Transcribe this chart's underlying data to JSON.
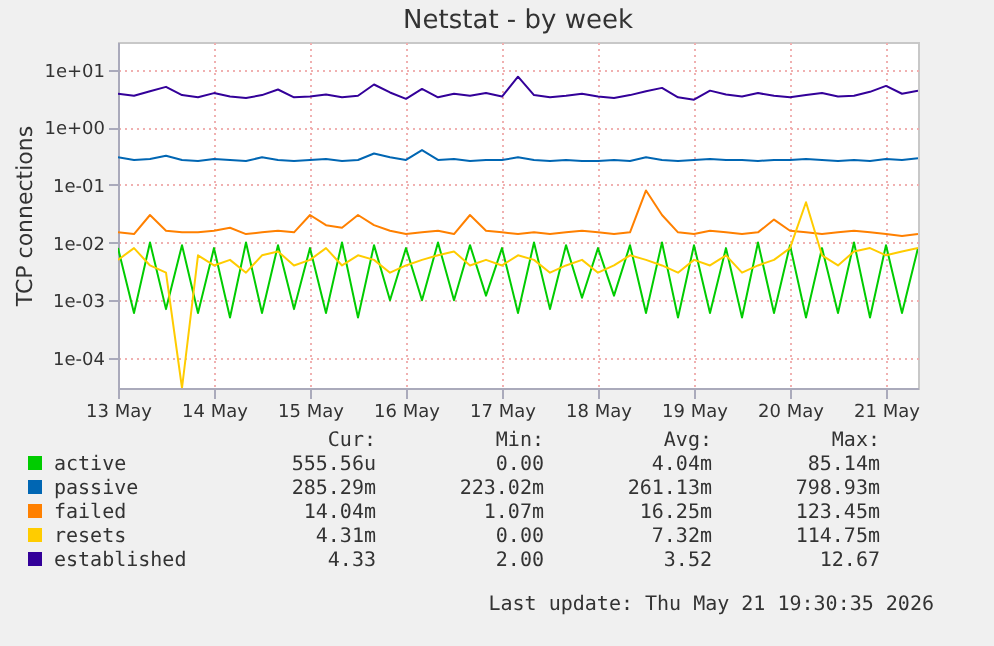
{
  "chart_data": {
    "type": "line",
    "title": "Netstat - by week",
    "ylabel": "TCP connections",
    "x": [
      "2026-05-13T00:00",
      "2026-05-13T04:00",
      "2026-05-13T08:00",
      "2026-05-13T12:00",
      "2026-05-13T16:00",
      "2026-05-13T20:00",
      "2026-05-14T00:00",
      "2026-05-14T04:00",
      "2026-05-14T08:00",
      "2026-05-14T12:00",
      "2026-05-14T16:00",
      "2026-05-14T20:00",
      "2026-05-15T00:00",
      "2026-05-15T04:00",
      "2026-05-15T08:00",
      "2026-05-15T12:00",
      "2026-05-15T16:00",
      "2026-05-15T20:00",
      "2026-05-16T00:00",
      "2026-05-16T04:00",
      "2026-05-16T08:00",
      "2026-05-16T12:00",
      "2026-05-16T16:00",
      "2026-05-16T20:00",
      "2026-05-17T00:00",
      "2026-05-17T04:00",
      "2026-05-17T08:00",
      "2026-05-17T12:00",
      "2026-05-17T16:00",
      "2026-05-17T20:00",
      "2026-05-18T00:00",
      "2026-05-18T04:00",
      "2026-05-18T08:00",
      "2026-05-18T12:00",
      "2026-05-18T16:00",
      "2026-05-18T20:00",
      "2026-05-19T00:00",
      "2026-05-19T04:00",
      "2026-05-19T08:00",
      "2026-05-19T12:00",
      "2026-05-19T16:00",
      "2026-05-19T20:00",
      "2026-05-20T00:00",
      "2026-05-20T04:00",
      "2026-05-20T08:00",
      "2026-05-20T12:00",
      "2026-05-20T16:00",
      "2026-05-20T20:00",
      "2026-05-21T00:00",
      "2026-05-21T04:00",
      "2026-05-21T08:00"
    ],
    "series": [
      {
        "name": "active",
        "color": "#00cc00",
        "values": [
          0.008,
          0.0006,
          0.01,
          0.0007,
          0.009,
          0.0006,
          0.008,
          0.0005,
          0.01,
          0.0006,
          0.009,
          0.0007,
          0.008,
          0.0006,
          0.01,
          0.0005,
          0.009,
          0.001,
          0.008,
          0.001,
          0.01,
          0.001,
          0.009,
          0.0012,
          0.008,
          0.0006,
          0.01,
          0.0007,
          0.009,
          0.0011,
          0.008,
          0.0012,
          0.009,
          0.0006,
          0.01,
          0.0005,
          0.009,
          0.0006,
          0.008,
          0.0005,
          0.01,
          0.0006,
          0.009,
          0.0005,
          0.008,
          0.0006,
          0.01,
          0.0005,
          0.009,
          0.0006,
          0.008
        ]
      },
      {
        "name": "passive",
        "color": "#0066b3",
        "values": [
          0.3,
          0.27,
          0.28,
          0.32,
          0.27,
          0.26,
          0.28,
          0.27,
          0.26,
          0.3,
          0.27,
          0.26,
          0.27,
          0.28,
          0.26,
          0.27,
          0.35,
          0.3,
          0.27,
          0.4,
          0.27,
          0.28,
          0.26,
          0.27,
          0.27,
          0.3,
          0.27,
          0.26,
          0.27,
          0.26,
          0.26,
          0.27,
          0.26,
          0.3,
          0.27,
          0.26,
          0.27,
          0.28,
          0.27,
          0.27,
          0.26,
          0.27,
          0.27,
          0.28,
          0.27,
          0.26,
          0.27,
          0.26,
          0.28,
          0.27,
          0.29
        ]
      },
      {
        "name": "failed",
        "color": "#ff8000",
        "values": [
          0.015,
          0.014,
          0.03,
          0.016,
          0.015,
          0.015,
          0.016,
          0.018,
          0.014,
          0.015,
          0.016,
          0.015,
          0.03,
          0.02,
          0.018,
          0.03,
          0.02,
          0.016,
          0.014,
          0.015,
          0.016,
          0.014,
          0.03,
          0.016,
          0.015,
          0.014,
          0.015,
          0.014,
          0.015,
          0.016,
          0.015,
          0.014,
          0.015,
          0.08,
          0.03,
          0.015,
          0.014,
          0.016,
          0.015,
          0.014,
          0.015,
          0.025,
          0.016,
          0.015,
          0.014,
          0.015,
          0.016,
          0.015,
          0.014,
          0.013,
          0.014
        ]
      },
      {
        "name": "resets",
        "color": "#ffcc00",
        "values": [
          0.005,
          0.008,
          0.004,
          0.003,
          3e-05,
          0.006,
          0.004,
          0.005,
          0.003,
          0.006,
          0.007,
          0.004,
          0.005,
          0.008,
          0.004,
          0.006,
          0.005,
          0.003,
          0.004,
          0.005,
          0.006,
          0.007,
          0.004,
          0.005,
          0.004,
          0.006,
          0.005,
          0.003,
          0.004,
          0.005,
          0.003,
          0.004,
          0.006,
          0.005,
          0.004,
          0.003,
          0.005,
          0.004,
          0.006,
          0.003,
          0.004,
          0.005,
          0.008,
          0.05,
          0.006,
          0.004,
          0.007,
          0.008,
          0.006,
          0.007,
          0.008
        ]
      },
      {
        "name": "established",
        "color": "#330099",
        "values": [
          3.8,
          3.5,
          4.2,
          5.0,
          3.6,
          3.3,
          3.9,
          3.4,
          3.2,
          3.6,
          4.5,
          3.3,
          3.4,
          3.7,
          3.3,
          3.5,
          5.5,
          4.0,
          3.1,
          4.6,
          3.3,
          3.8,
          3.5,
          3.9,
          3.4,
          7.5,
          3.6,
          3.3,
          3.5,
          3.8,
          3.4,
          3.2,
          3.6,
          4.2,
          4.8,
          3.3,
          3.0,
          4.3,
          3.7,
          3.4,
          3.9,
          3.5,
          3.3,
          3.6,
          3.9,
          3.4,
          3.5,
          4.1,
          5.2,
          3.8,
          4.3
        ]
      }
    ],
    "xlim": [
      "2026-05-13T00:00",
      "2026-05-21T08:00"
    ],
    "xticks": [
      {
        "value": "2026-05-13",
        "label": "13 May"
      },
      {
        "value": "2026-05-14",
        "label": "14 May"
      },
      {
        "value": "2026-05-15",
        "label": "15 May"
      },
      {
        "value": "2026-05-16",
        "label": "16 May"
      },
      {
        "value": "2026-05-17",
        "label": "17 May"
      },
      {
        "value": "2026-05-18",
        "label": "18 May"
      },
      {
        "value": "2026-05-19",
        "label": "19 May"
      },
      {
        "value": "2026-05-20",
        "label": "20 May"
      },
      {
        "value": "2026-05-21",
        "label": "21 May"
      }
    ],
    "ylim": [
      3e-05,
      30
    ],
    "yticks": [
      {
        "value": 0.0001,
        "label": "1e-04"
      },
      {
        "value": 0.001,
        "label": "1e-03"
      },
      {
        "value": 0.01,
        "label": "1e-02"
      },
      {
        "value": 0.1,
        "label": "1e-01"
      },
      {
        "value": 1,
        "label": "1e+00"
      },
      {
        "value": 10,
        "label": "1e+01"
      }
    ],
    "log": "y",
    "grid": true,
    "legend": "bottom",
    "marker": "none",
    "line_style": "solid",
    "annotations": [
      "Cur:",
      "Min:",
      "Avg:",
      "Max:",
      "555.56u",
      "0.00",
      "4.04m",
      "85.14m",
      "285.29m",
      "223.02m",
      "261.13m",
      "798.93m",
      "14.04m",
      "1.07m",
      "16.25m",
      "123.45m",
      "4.31m",
      "0.00",
      "7.32m",
      "114.75m",
      "4.33",
      "2.00",
      "3.52",
      "12.67",
      "Last update: Thu May 21 19:30:35 2026"
    ]
  }
}
